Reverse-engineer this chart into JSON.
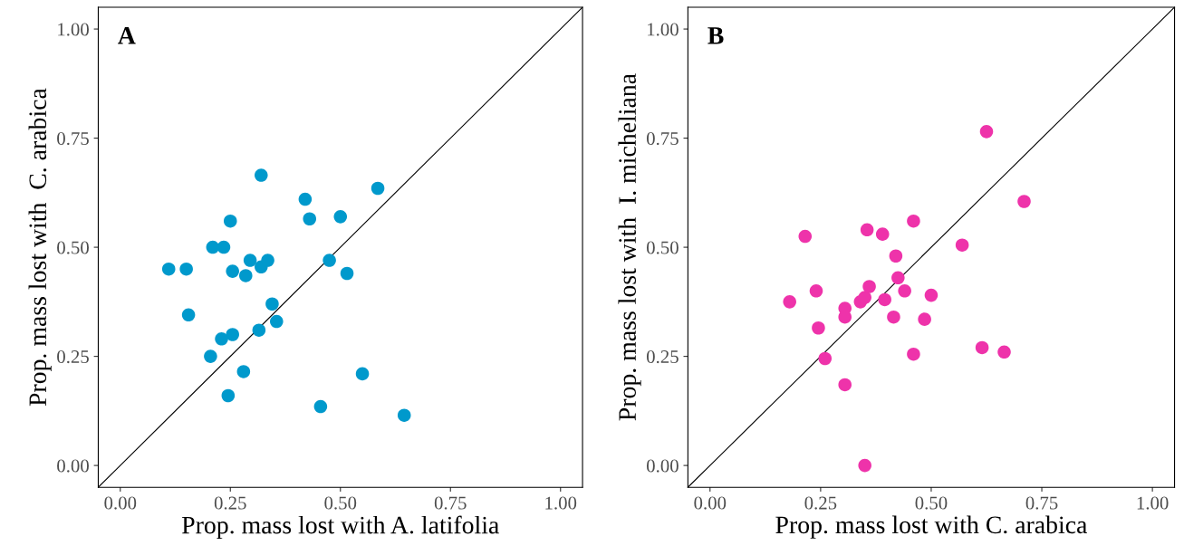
{
  "chart_data": [
    {
      "type": "scatter",
      "xlabel": "Prop. mass lost with A. latifolia",
      "ylabel": "Prop. mass lost with  C. arabica",
      "annotations": [
        "A"
      ],
      "xlim": [
        -0.05,
        1.05
      ],
      "ylim": [
        -0.05,
        1.05
      ],
      "xticks": [
        {
          "value": 0,
          "label": "0.00"
        },
        {
          "value": 0.25,
          "label": "0.25"
        },
        {
          "value": 0.5,
          "label": "0.50"
        },
        {
          "value": 0.75,
          "label": "0.75"
        },
        {
          "value": 1,
          "label": "1.00"
        }
      ],
      "yticks": [
        {
          "value": 0,
          "label": "0.00"
        },
        {
          "value": 0.25,
          "label": "0.25"
        },
        {
          "value": 0.5,
          "label": "0.50"
        },
        {
          "value": 0.75,
          "label": "0.75"
        },
        {
          "value": 1,
          "label": "1.00"
        }
      ],
      "series": [
        {
          "marker": "circle",
          "color": "#0099cc",
          "x": [
            0.11,
            0.15,
            0.155,
            0.205,
            0.21,
            0.23,
            0.235,
            0.245,
            0.25,
            0.255,
            0.255,
            0.28,
            0.285,
            0.295,
            0.315,
            0.32,
            0.32,
            0.335,
            0.345,
            0.355,
            0.42,
            0.43,
            0.455,
            0.475,
            0.5,
            0.515,
            0.55,
            0.585,
            0.645
          ],
          "values": [
            0.45,
            0.45,
            0.345,
            0.25,
            0.5,
            0.29,
            0.5,
            0.16,
            0.56,
            0.445,
            0.3,
            0.215,
            0.435,
            0.47,
            0.31,
            0.455,
            0.665,
            0.47,
            0.37,
            0.33,
            0.61,
            0.565,
            0.135,
            0.47,
            0.57,
            0.44,
            0.21,
            0.635,
            0.115
          ]
        },
        {
          "type": "line",
          "color": "#000000",
          "x": [
            -0.05,
            1.05
          ],
          "values": [
            -0.05,
            1.05
          ]
        }
      ]
    },
    {
      "type": "scatter",
      "xlabel": "Prop. mass lost with C. arabica",
      "ylabel": "Prop. mass lost with  I. micheliana",
      "annotations": [
        "B"
      ],
      "xlim": [
        -0.05,
        1.05
      ],
      "ylim": [
        -0.05,
        1.05
      ],
      "xticks": [
        {
          "value": 0,
          "label": "0.00"
        },
        {
          "value": 0.25,
          "label": "0.25"
        },
        {
          "value": 0.5,
          "label": "0.50"
        },
        {
          "value": 0.75,
          "label": "0.75"
        },
        {
          "value": 1,
          "label": "1.00"
        }
      ],
      "yticks": [
        {
          "value": 0,
          "label": "0.00"
        },
        {
          "value": 0.25,
          "label": "0.25"
        },
        {
          "value": 0.5,
          "label": "0.50"
        },
        {
          "value": 0.75,
          "label": "0.75"
        },
        {
          "value": 1,
          "label": "1.00"
        }
      ],
      "series": [
        {
          "marker": "circle",
          "color": "#ee33aa",
          "x": [
            0.18,
            0.215,
            0.24,
            0.245,
            0.26,
            0.305,
            0.305,
            0.305,
            0.34,
            0.35,
            0.35,
            0.355,
            0.36,
            0.39,
            0.395,
            0.415,
            0.42,
            0.425,
            0.44,
            0.46,
            0.46,
            0.485,
            0.5,
            0.57,
            0.615,
            0.625,
            0.665,
            0.71
          ],
          "values": [
            0.375,
            0.525,
            0.4,
            0.315,
            0.245,
            0.36,
            0.34,
            0.185,
            0.375,
            0.385,
            0.0,
            0.54,
            0.41,
            0.53,
            0.38,
            0.34,
            0.48,
            0.43,
            0.4,
            0.56,
            0.255,
            0.335,
            0.39,
            0.505,
            0.27,
            0.765,
            0.26,
            0.605
          ]
        },
        {
          "type": "line",
          "color": "#000000",
          "x": [
            -0.05,
            1.05
          ],
          "values": [
            -0.05,
            1.05
          ]
        }
      ]
    }
  ]
}
